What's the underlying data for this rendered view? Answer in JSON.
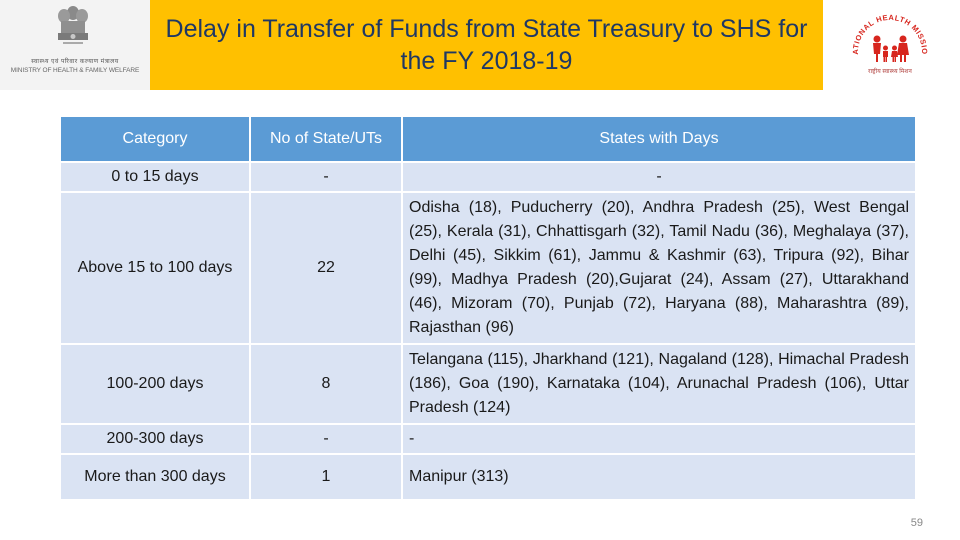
{
  "header": {
    "ministry_hindi": "स्वास्थ्य एवं परिवार कल्याण मंत्रालय",
    "ministry_name": "MINISTRY OF HEALTH & FAMILY WELFARE",
    "title": "Delay in Transfer of Funds from State Treasury to SHS for the FY 2018-19",
    "nhm_logo_text": "NATIONAL HEALTH MISSION",
    "nhm_logo_hindi": "राष्ट्रीय स्वास्थ्य मिशन"
  },
  "table": {
    "headers": [
      "Category",
      "No of State/UTs",
      "States with Days"
    ],
    "rows": [
      {
        "category": "0 to 15 days",
        "count": "-",
        "states": "-"
      },
      {
        "category": "Above 15 to 100 days",
        "count": "22",
        "states": "Odisha (18), Puducherry (20), Andhra Pradesh (25), West Bengal (25), Kerala (31), Chhattisgarh (32), Tamil Nadu (36), Meghalaya (37),  Delhi (45), Sikkim (61), Jammu & Kashmir (63), Tripura (92), Bihar (99), Madhya Pradesh (20),Gujarat (24), Assam (27), Uttarakhand (46), Mizoram (70), Punjab (72), Haryana (88), Maharashtra (89), Rajasthan (96)"
      },
      {
        "category": "100-200 days",
        "count": "8",
        "states": "Telangana (115), Jharkhand (121), Nagaland (128), Himachal Pradesh (186), Goa (190), Karnataka (104), Arunachal Pradesh (106), Uttar Pradesh (124)"
      },
      {
        "category": "200-300 days",
        "count": "-",
        "states": "-"
      },
      {
        "category": "More than 300 days",
        "count": "1",
        "states": "Manipur (313)"
      }
    ]
  },
  "page_number": "59",
  "colors": {
    "title_bg": "#ffc000",
    "title_text": "#1f3864",
    "header_bg": "#5b9bd5",
    "cell_bg": "#dae3f3",
    "nhm_red": "#d7261e"
  }
}
